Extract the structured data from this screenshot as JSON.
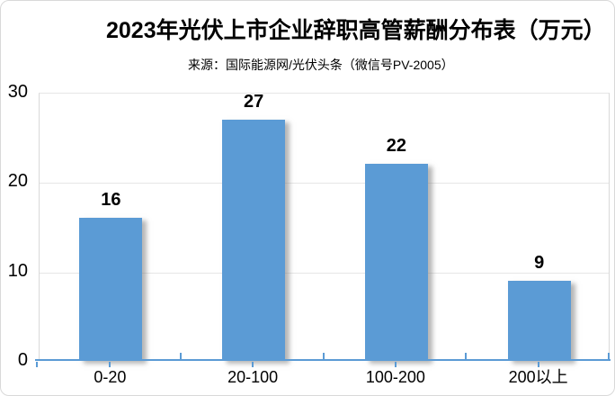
{
  "chart_data": {
    "type": "bar",
    "title": "2023年光伏上市企业辞职高管薪酬分布表（万元）",
    "source": "来源：国际能源网/光伏头条（微信号PV-2005）",
    "categories": [
      "0-20",
      "20-100",
      "100-200",
      "200以上"
    ],
    "values": [
      16,
      27,
      22,
      9
    ],
    "xlabel": "",
    "ylabel": "",
    "ylim": [
      0,
      30
    ],
    "yticks": [
      0,
      10,
      20,
      30
    ],
    "grid": true,
    "legend": "none",
    "data_labels": [
      "16",
      "27",
      "22",
      "9"
    ],
    "colors": {
      "bar": "#5B9BD5",
      "axis_line": "#5B9BD5",
      "gridline": "#E6E6E6",
      "plot_border": "#D9D9D9",
      "text": "#000000"
    }
  }
}
